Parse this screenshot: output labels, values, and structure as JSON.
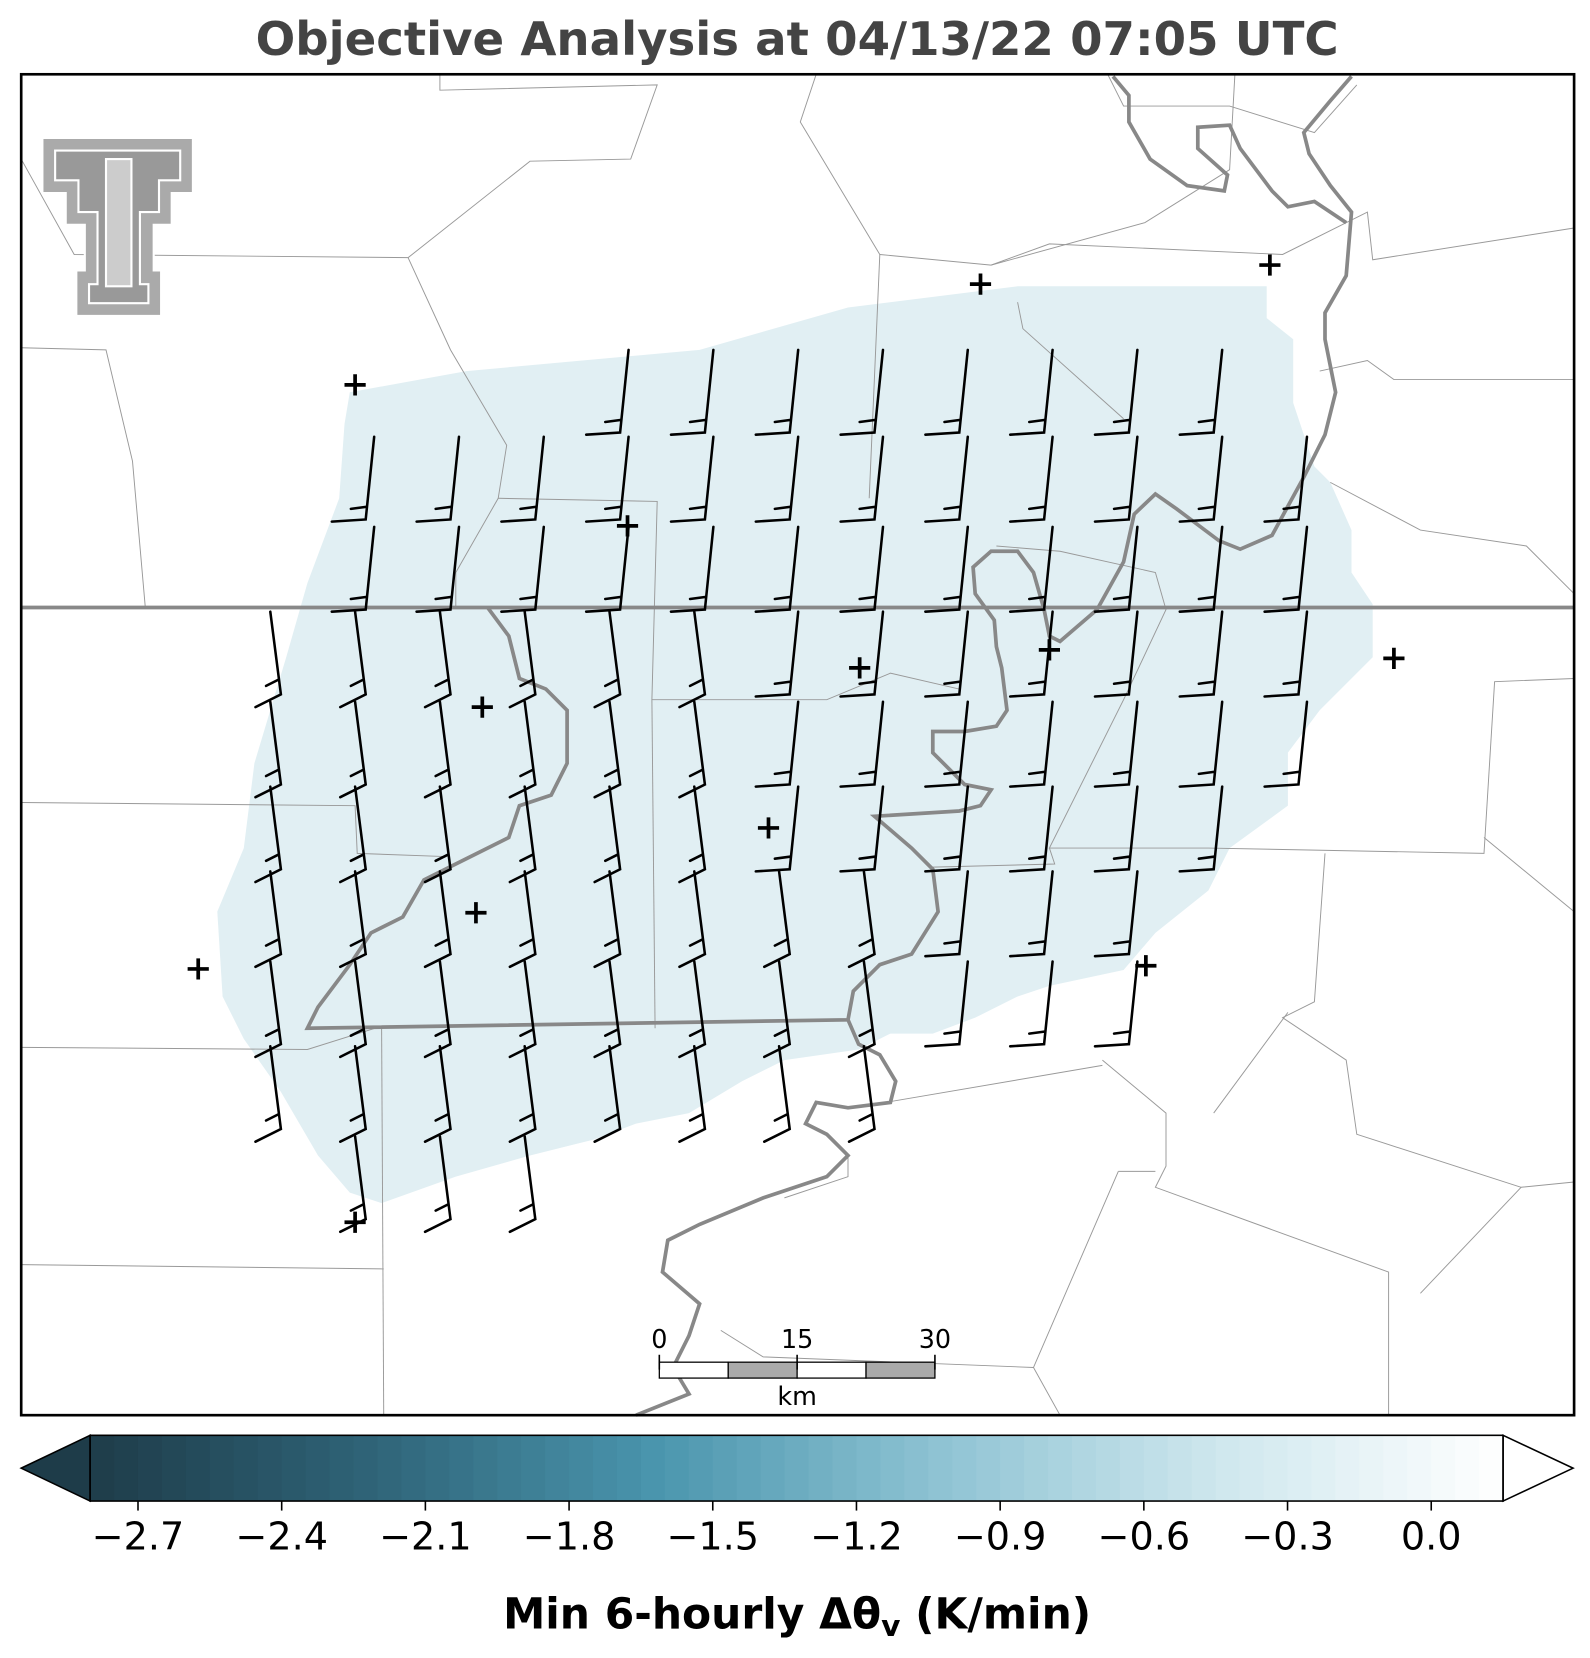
{
  "title": "Objective Analysis at 04/13/22 07:05 UTC",
  "colorbar": {
    "label": {
      "text": "Min 6-hourly Δθ",
      "subscript": "v",
      "suffix": " (K/min)"
    },
    "clim": [
      -2.8,
      0.15
    ],
    "colormap": [
      "#1e3c49",
      "#2f6478",
      "#4a95ad",
      "#8ec3d3",
      "#cfe7ee",
      "#ffffff"
    ],
    "ticks": [
      {
        "value": -2.7,
        "label": "−2.7"
      },
      {
        "value": -2.4,
        "label": "−2.4"
      },
      {
        "value": -2.1,
        "label": "−2.1"
      },
      {
        "value": -1.8,
        "label": "−1.8"
      },
      {
        "value": -1.5,
        "label": "−1.5"
      },
      {
        "value": -1.2,
        "label": "−1.2"
      },
      {
        "value": -0.9,
        "label": "−0.9"
      },
      {
        "value": -0.6,
        "label": "−0.6"
      },
      {
        "value": -0.3,
        "label": "−0.3"
      },
      {
        "value": 0.0,
        "label": "0.0"
      }
    ]
  },
  "scale_bar": {
    "ticks": [
      0,
      15,
      30
    ],
    "unit": "km"
  }
}
